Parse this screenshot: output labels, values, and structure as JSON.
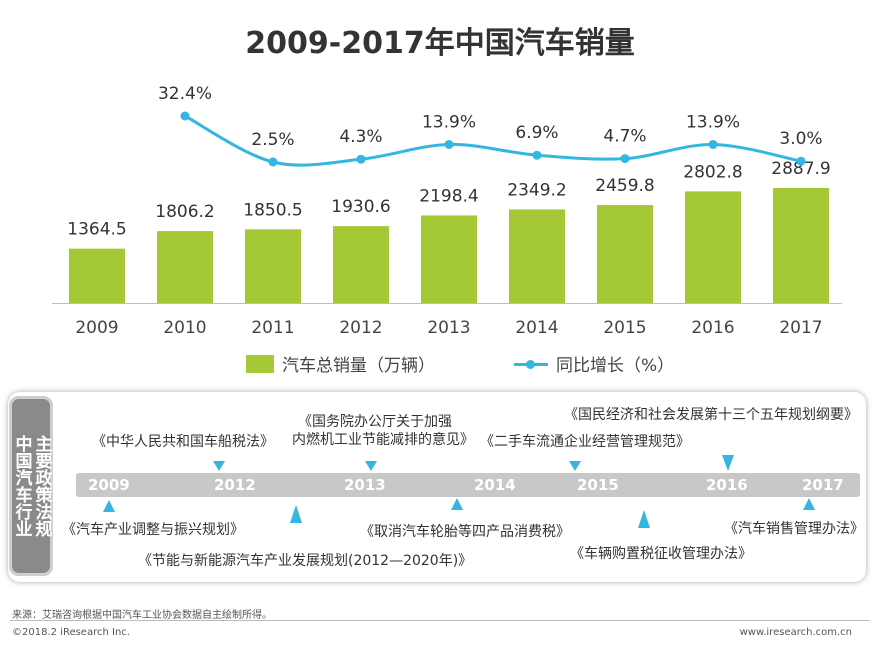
{
  "colors": {
    "bar": "#a5c835",
    "line": "#33b6df",
    "text": "#333333"
  },
  "chart_data": {
    "type": "bar",
    "title": "2009-2017年中国汽车销量",
    "categories": [
      "2009",
      "2010",
      "2011",
      "2012",
      "2013",
      "2014",
      "2015",
      "2016",
      "2017"
    ],
    "series": [
      {
        "name": "汽车总销量（万辆）",
        "type": "bar",
        "values": [
          1364.5,
          1806.2,
          1850.5,
          1930.6,
          2198.4,
          2349.2,
          2459.8,
          2802.8,
          2887.9
        ],
        "labels": [
          "1364.5",
          "1806.2",
          "1850.5",
          "1930.6",
          "2198.4",
          "2349.2",
          "2459.8",
          "2802.8",
          "2887.9"
        ]
      },
      {
        "name": "同比增长（%）",
        "type": "line",
        "values": [
          null,
          32.4,
          2.5,
          4.3,
          13.9,
          6.9,
          4.7,
          13.9,
          3.0
        ],
        "labels": [
          "",
          "32.4%",
          "2.5%",
          "4.3%",
          "13.9%",
          "6.9%",
          "4.7%",
          "13.9%",
          "3.0%"
        ]
      }
    ],
    "legend": [
      "汽车总销量（万辆）",
      "同比增长（%）"
    ]
  },
  "policy": {
    "side_col1": "中国汽车行业",
    "side_col2": "主要政策法规",
    "years": [
      "2009",
      "2012",
      "2013",
      "2014",
      "2015",
      "2016",
      "2017"
    ],
    "above": [
      "《中华人民共和国车船税法》",
      "《国务院办公厅关于加强",
      "内燃机工业节能减排的意见》",
      "《二手车流通企业经营管理规范》",
      "《国民经济和社会发展第十三个五年规划纲要》"
    ],
    "below": [
      "《汽车产业调整与振兴规划》",
      "《节能与新能源汽车产业发展规划(2012—2020年)》",
      "《取消汽车轮胎等四产品消费税》",
      "《车辆购置税征收管理办法》",
      "《汽车销售管理办法》"
    ]
  },
  "footer": {
    "source": "来源：艾瑞咨询根据中国汽车工业协会数据自主绘制所得。",
    "copyright": "©2018.2 iResearch Inc.",
    "site": "www.iresearch.com.cn"
  }
}
